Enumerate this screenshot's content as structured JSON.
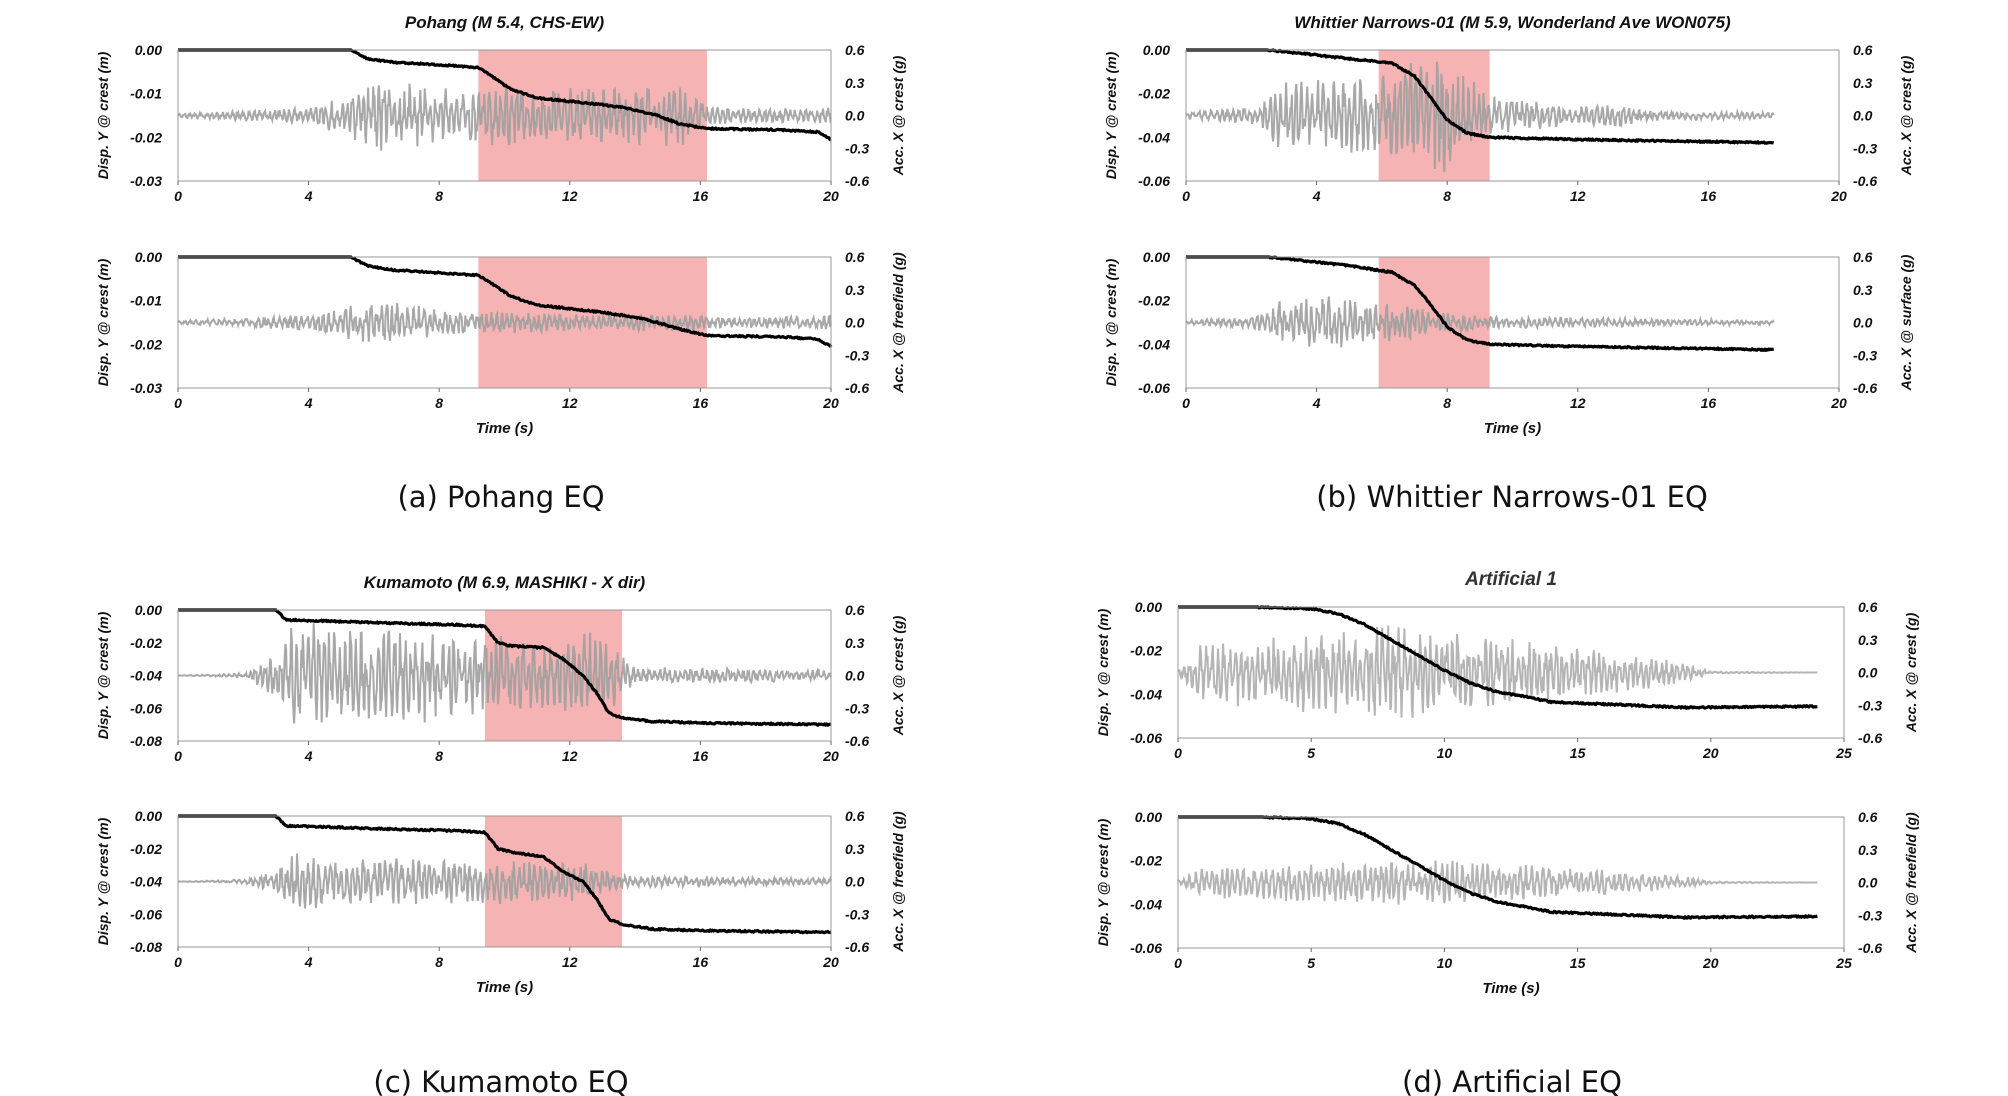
{
  "panels": [
    {
      "caption": "(a) Pohang EQ",
      "charts": [
        {
          "title": "Pohang (M 5.4, CHS-EW)",
          "ylabel": "Disp. Y @ crest (m)",
          "y2label": "Acc. X @ crest (g)",
          "xlabel": ""
        },
        {
          "title": "",
          "ylabel": "Disp. Y @ crest (m)",
          "y2label": "Acc. X @ freefield (g)",
          "xlabel": "Time (s)"
        }
      ]
    },
    {
      "caption": "(b) Whittier Narrows-01 EQ",
      "charts": [
        {
          "title": "Whittier Narrows-01 (M 5.9, Wonderland Ave WON075)",
          "ylabel": "Disp. Y @ crest (m)",
          "y2label": "Acc. X @ crest (g)",
          "xlabel": ""
        },
        {
          "title": "",
          "ylabel": "Disp. Y @ crest (m)",
          "y2label": "Acc. X @ surface (g)",
          "xlabel": "Time (s)"
        }
      ]
    },
    {
      "caption": "(c) Kumamoto EQ",
      "charts": [
        {
          "title": "Kumamoto (M 6.9, MASHIKI - X dir)",
          "ylabel": "Disp. Y @ crest (m)",
          "y2label": "Acc. X @ crest (g)",
          "xlabel": ""
        },
        {
          "title": "",
          "ylabel": "Disp. Y @ crest (m)",
          "y2label": "Acc. X @ freefield (g)",
          "xlabel": "Time (s)"
        }
      ]
    },
    {
      "caption": "(d) Artificial EQ",
      "charts": [
        {
          "title": "Artificial 1",
          "ylabel": "Disp. Y @ crest (m)",
          "y2label": "Acc. X @ crest (g)",
          "xlabel": ""
        },
        {
          "title": "",
          "ylabel": "Disp. Y @ crest (m)",
          "y2label": "Acc. X @ freefield (g)",
          "xlabel": "Time (s)"
        }
      ]
    }
  ],
  "chart_data": [
    {
      "id": "a-top",
      "type": "line",
      "title": "Pohang (M 5.4, CHS-EW)",
      "xlabel": "",
      "ylabel": "Disp. Y @ crest (m)",
      "y2label": "Acc. X @ crest (g)",
      "xlim": [
        0,
        20
      ],
      "xticks": [
        0,
        4,
        8,
        12,
        16,
        20
      ],
      "ylim": [
        -0.03,
        0
      ],
      "yticks": [
        0.0,
        -0.01,
        -0.02,
        -0.03
      ],
      "ydec": 2,
      "y2lim": [
        -0.6,
        0.6
      ],
      "y2ticks": [
        0.6,
        0.3,
        0.0,
        -0.3,
        -0.6
      ],
      "grid": false,
      "highlight": [
        9.2,
        16.2
      ],
      "highlight_color": "#f4a6a6",
      "disp_color": "#000000",
      "acc_color": "#9e9e9e",
      "disp": [
        [
          0,
          0
        ],
        [
          5.3,
          0
        ],
        [
          5.8,
          -0.002
        ],
        [
          6.6,
          -0.0028
        ],
        [
          7.6,
          -0.0032
        ],
        [
          9.2,
          -0.004
        ],
        [
          9.6,
          -0.006
        ],
        [
          10.2,
          -0.009
        ],
        [
          11.0,
          -0.011
        ],
        [
          12.6,
          -0.0122
        ],
        [
          13.5,
          -0.013
        ],
        [
          14.6,
          -0.0148
        ],
        [
          15.4,
          -0.017
        ],
        [
          16.2,
          -0.018
        ],
        [
          18.5,
          -0.0183
        ],
        [
          19.6,
          -0.0188
        ],
        [
          20,
          -0.0205
        ]
      ],
      "acc_env": [
        [
          0,
          0.02
        ],
        [
          2,
          0.05
        ],
        [
          4,
          0.07
        ],
        [
          5.5,
          0.24
        ],
        [
          6.2,
          0.34
        ],
        [
          8,
          0.28
        ],
        [
          9.5,
          0.3
        ],
        [
          11.5,
          0.28
        ],
        [
          13,
          0.26
        ],
        [
          15.5,
          0.3
        ],
        [
          16.3,
          0.08
        ],
        [
          19.5,
          0.06
        ],
        [
          20,
          0.1
        ]
      ],
      "acc_seed": 11
    },
    {
      "id": "a-bot",
      "type": "line",
      "title": "",
      "xlabel": "Time (s)",
      "ylabel": "Disp. Y @ crest (m)",
      "y2label": "Acc. X @ freefield (g)",
      "xlim": [
        0,
        20
      ],
      "xticks": [
        0,
        4,
        8,
        12,
        16,
        20
      ],
      "ylim": [
        -0.03,
        0
      ],
      "yticks": [
        0.0,
        -0.01,
        -0.02,
        -0.03
      ],
      "ydec": 2,
      "y2lim": [
        -0.6,
        0.6
      ],
      "y2ticks": [
        0.6,
        0.3,
        0.0,
        -0.3,
        -0.6
      ],
      "grid": false,
      "highlight": [
        9.2,
        16.2
      ],
      "highlight_color": "#f4a6a6",
      "disp_color": "#000000",
      "acc_color": "#9e9e9e",
      "disp": [
        [
          0,
          0
        ],
        [
          5.3,
          0
        ],
        [
          5.8,
          -0.002
        ],
        [
          6.6,
          -0.003
        ],
        [
          7.8,
          -0.0035
        ],
        [
          9.2,
          -0.0042
        ],
        [
          9.6,
          -0.006
        ],
        [
          10.2,
          -0.009
        ],
        [
          11.0,
          -0.011
        ],
        [
          12.8,
          -0.0125
        ],
        [
          14.2,
          -0.014
        ],
        [
          15.6,
          -0.017
        ],
        [
          16.2,
          -0.018
        ],
        [
          18.5,
          -0.0183
        ],
        [
          19.6,
          -0.0188
        ],
        [
          20,
          -0.0205
        ]
      ],
      "acc_env": [
        [
          0,
          0.02
        ],
        [
          2,
          0.04
        ],
        [
          4,
          0.08
        ],
        [
          5.5,
          0.18
        ],
        [
          6.2,
          0.22
        ],
        [
          8,
          0.12
        ],
        [
          10,
          0.1
        ],
        [
          13,
          0.08
        ],
        [
          16,
          0.08
        ],
        [
          16.3,
          0.05
        ],
        [
          19.5,
          0.06
        ],
        [
          20,
          0.08
        ]
      ],
      "acc_seed": 23
    },
    {
      "id": "b-top",
      "type": "line",
      "title": "Whittier Narrows-01 (M 5.9, Wonderland Ave WON075)",
      "xlabel": "",
      "ylabel": "Disp. Y @ crest (m)",
      "y2label": "Acc. X @ crest (g)",
      "xlim": [
        0,
        20
      ],
      "xticks": [
        0,
        4,
        8,
        12,
        16,
        20
      ],
      "ylim": [
        -0.06,
        0
      ],
      "yticks": [
        0.0,
        -0.02,
        -0.04,
        -0.06
      ],
      "ydec": 2,
      "y2lim": [
        -0.6,
        0.6
      ],
      "y2ticks": [
        0.6,
        0.3,
        0.0,
        -0.3,
        -0.6
      ],
      "grid": false,
      "highlight": [
        5.9,
        9.3
      ],
      "highlight_color": "#f4a6a6",
      "disp_color": "#000000",
      "acc_color": "#9e9e9e",
      "disp": [
        [
          0,
          0
        ],
        [
          2.5,
          0
        ],
        [
          3.5,
          -0.0015
        ],
        [
          5.0,
          -0.004
        ],
        [
          6.3,
          -0.006
        ],
        [
          7.0,
          -0.012
        ],
        [
          7.5,
          -0.022
        ],
        [
          8.0,
          -0.032
        ],
        [
          8.6,
          -0.038
        ],
        [
          9.3,
          -0.04
        ],
        [
          12,
          -0.041
        ],
        [
          16,
          -0.042
        ],
        [
          18,
          -0.0425
        ]
      ],
      "acc_env": [
        [
          0,
          0.03
        ],
        [
          2,
          0.08
        ],
        [
          2.8,
          0.3
        ],
        [
          4.5,
          0.35
        ],
        [
          6,
          0.4
        ],
        [
          7.4,
          0.6
        ],
        [
          8.5,
          0.45
        ],
        [
          9.3,
          0.2
        ],
        [
          12,
          0.08
        ],
        [
          13.3,
          0.12
        ],
        [
          14,
          0.05
        ],
        [
          18,
          0.03
        ]
      ],
      "acc_seed": 37,
      "acc_end": 18
    },
    {
      "id": "b-bot",
      "type": "line",
      "title": "",
      "xlabel": "Time (s)",
      "ylabel": "Disp. Y @ crest (m)",
      "y2label": "Acc. X @ surface (g)",
      "xlim": [
        0,
        20
      ],
      "xticks": [
        0,
        4,
        8,
        12,
        16,
        20
      ],
      "ylim": [
        -0.06,
        0
      ],
      "yticks": [
        0.0,
        -0.02,
        -0.04,
        -0.06
      ],
      "ydec": 2,
      "y2lim": [
        -0.6,
        0.6
      ],
      "y2ticks": [
        0.6,
        0.3,
        0.0,
        -0.3,
        -0.6
      ],
      "grid": false,
      "highlight": [
        5.9,
        9.3
      ],
      "highlight_color": "#f4a6a6",
      "disp_color": "#000000",
      "acc_color": "#9e9e9e",
      "disp": [
        [
          0,
          0
        ],
        [
          2.5,
          0
        ],
        [
          3.5,
          -0.0015
        ],
        [
          5.0,
          -0.004
        ],
        [
          6.3,
          -0.007
        ],
        [
          7.0,
          -0.013
        ],
        [
          7.5,
          -0.022
        ],
        [
          8.0,
          -0.032
        ],
        [
          8.6,
          -0.038
        ],
        [
          9.3,
          -0.04
        ],
        [
          12,
          -0.041
        ],
        [
          16,
          -0.042
        ],
        [
          18,
          -0.0425
        ]
      ],
      "acc_env": [
        [
          0,
          0.02
        ],
        [
          2,
          0.06
        ],
        [
          2.8,
          0.2
        ],
        [
          4.5,
          0.25
        ],
        [
          6,
          0.2
        ],
        [
          7.4,
          0.12
        ],
        [
          9.3,
          0.06
        ],
        [
          18,
          0.02
        ]
      ],
      "acc_seed": 41,
      "acc_end": 18
    },
    {
      "id": "c-top",
      "type": "line",
      "title": "Kumamoto (M 6.9, MASHIKI - X dir)",
      "xlabel": "",
      "ylabel": "Disp. Y @ crest (m)",
      "y2label": "Acc. X @ crest (g)",
      "xlim": [
        0,
        20
      ],
      "xticks": [
        0,
        4,
        8,
        12,
        16,
        20
      ],
      "ylim": [
        -0.08,
        0
      ],
      "yticks": [
        0.0,
        -0.02,
        -0.04,
        -0.06,
        -0.08
      ],
      "ydec": 2,
      "y2lim": [
        -0.6,
        0.6
      ],
      "y2ticks": [
        0.6,
        0.3,
        0.0,
        -0.3,
        -0.6
      ],
      "grid": false,
      "highlight": [
        9.4,
        13.6
      ],
      "highlight_color": "#f4a6a6",
      "disp_color": "#000000",
      "acc_color": "#9e9e9e",
      "disp": [
        [
          0,
          0
        ],
        [
          3.0,
          0
        ],
        [
          3.3,
          -0.006
        ],
        [
          5.0,
          -0.007
        ],
        [
          6.5,
          -0.008
        ],
        [
          8.5,
          -0.009
        ],
        [
          9.4,
          -0.01
        ],
        [
          9.8,
          -0.02
        ],
        [
          10.2,
          -0.022
        ],
        [
          11.2,
          -0.023
        ],
        [
          11.8,
          -0.03
        ],
        [
          12.4,
          -0.04
        ],
        [
          12.8,
          -0.05
        ],
        [
          13.2,
          -0.063
        ],
        [
          13.6,
          -0.066
        ],
        [
          14.5,
          -0.068
        ],
        [
          16,
          -0.069
        ],
        [
          20,
          -0.07
        ]
      ],
      "acc_env": [
        [
          0,
          0.0
        ],
        [
          2.0,
          0.02
        ],
        [
          3.0,
          0.2
        ],
        [
          3.5,
          0.5
        ],
        [
          5,
          0.45
        ],
        [
          7,
          0.45
        ],
        [
          9,
          0.4
        ],
        [
          10.5,
          0.35
        ],
        [
          12.5,
          0.42
        ],
        [
          13.6,
          0.25
        ],
        [
          14,
          0.08
        ],
        [
          20,
          0.06
        ]
      ],
      "acc_seed": 53
    },
    {
      "id": "c-bot",
      "type": "line",
      "title": "",
      "xlabel": "Time (s)",
      "ylabel": "Disp. Y @ crest (m)",
      "y2label": "Acc. X @ freefield (g)",
      "xlim": [
        0,
        20
      ],
      "xticks": [
        0,
        4,
        8,
        12,
        16,
        20
      ],
      "ylim": [
        -0.08,
        0
      ],
      "yticks": [
        0.0,
        -0.02,
        -0.04,
        -0.06,
        -0.08
      ],
      "ydec": 2,
      "y2lim": [
        -0.6,
        0.6
      ],
      "y2ticks": [
        0.6,
        0.3,
        0.0,
        -0.3,
        -0.6
      ],
      "grid": false,
      "highlight": [
        9.4,
        13.6
      ],
      "highlight_color": "#f4a6a6",
      "disp_color": "#000000",
      "acc_color": "#9e9e9e",
      "disp": [
        [
          0,
          0
        ],
        [
          3.0,
          0
        ],
        [
          3.3,
          -0.006
        ],
        [
          5.0,
          -0.007
        ],
        [
          6.5,
          -0.008
        ],
        [
          8.5,
          -0.009
        ],
        [
          9.4,
          -0.01
        ],
        [
          9.8,
          -0.02
        ],
        [
          10.2,
          -0.022
        ],
        [
          11.2,
          -0.025
        ],
        [
          11.8,
          -0.034
        ],
        [
          12.4,
          -0.04
        ],
        [
          12.8,
          -0.05
        ],
        [
          13.2,
          -0.063
        ],
        [
          13.6,
          -0.066
        ],
        [
          14.5,
          -0.069
        ],
        [
          16,
          -0.07
        ],
        [
          20,
          -0.071
        ]
      ],
      "acc_env": [
        [
          0,
          0.0
        ],
        [
          2.0,
          0.02
        ],
        [
          3.0,
          0.1
        ],
        [
          3.5,
          0.28
        ],
        [
          5,
          0.22
        ],
        [
          7,
          0.22
        ],
        [
          9,
          0.2
        ],
        [
          10.5,
          0.22
        ],
        [
          12.5,
          0.18
        ],
        [
          13.6,
          0.06
        ],
        [
          20,
          0.03
        ]
      ],
      "acc_seed": 67
    },
    {
      "id": "d-top",
      "type": "line",
      "title": "Artificial 1",
      "xlabel": "",
      "ylabel": "Disp. Y @ crest (m)",
      "y2label": "Acc. X @ crest (g)",
      "xlim": [
        0,
        25
      ],
      "xticks": [
        0,
        5,
        10,
        15,
        20,
        25
      ],
      "ylim": [
        -0.06,
        0
      ],
      "yticks": [
        0.0,
        -0.02,
        -0.04,
        -0.06
      ],
      "ydec": 2,
      "y2lim": [
        -0.6,
        0.6
      ],
      "y2ticks": [
        0.6,
        0.3,
        0.0,
        -0.3,
        -0.6
      ],
      "grid": false,
      "highlight": null,
      "disp_color": "#000000",
      "acc_color": "#a8a8a8",
      "disp": [
        [
          0,
          0
        ],
        [
          3,
          0
        ],
        [
          5,
          -0.0008
        ],
        [
          6,
          -0.003
        ],
        [
          7,
          -0.008
        ],
        [
          8,
          -0.015
        ],
        [
          9,
          -0.022
        ],
        [
          10,
          -0.029
        ],
        [
          11,
          -0.035
        ],
        [
          12,
          -0.039
        ],
        [
          13,
          -0.041
        ],
        [
          14,
          -0.0435
        ],
        [
          15,
          -0.044
        ],
        [
          17,
          -0.045
        ],
        [
          19,
          -0.046
        ],
        [
          24,
          -0.0455
        ]
      ],
      "acc_env": [
        [
          0,
          0.02
        ],
        [
          1,
          0.3
        ],
        [
          3,
          0.32
        ],
        [
          6,
          0.4
        ],
        [
          8,
          0.45
        ],
        [
          9,
          0.45
        ],
        [
          11,
          0.35
        ],
        [
          13,
          0.3
        ],
        [
          15,
          0.25
        ],
        [
          17,
          0.18
        ],
        [
          19,
          0.1
        ],
        [
          20,
          0.01
        ],
        [
          24,
          0.0
        ]
      ],
      "acc_seed": 79,
      "acc_end": 24
    },
    {
      "id": "d-bot",
      "type": "line",
      "title": "",
      "xlabel": "Time (s)",
      "ylabel": "Disp. Y @ crest (m)",
      "y2label": "Acc. X @ freefield (g)",
      "xlim": [
        0,
        25
      ],
      "xticks": [
        0,
        5,
        10,
        15,
        20,
        25
      ],
      "ylim": [
        -0.06,
        0
      ],
      "yticks": [
        0.0,
        -0.02,
        -0.04,
        -0.06
      ],
      "ydec": 2,
      "y2lim": [
        -0.6,
        0.6
      ],
      "y2ticks": [
        0.6,
        0.3,
        0.0,
        -0.3,
        -0.6
      ],
      "grid": false,
      "highlight": null,
      "disp_color": "#000000",
      "acc_color": "#a8a8a8",
      "disp": [
        [
          0,
          0
        ],
        [
          3,
          0
        ],
        [
          5,
          -0.0008
        ],
        [
          6,
          -0.003
        ],
        [
          7,
          -0.008
        ],
        [
          8,
          -0.015
        ],
        [
          9,
          -0.022
        ],
        [
          10,
          -0.029
        ],
        [
          11,
          -0.035
        ],
        [
          12,
          -0.039
        ],
        [
          13,
          -0.041
        ],
        [
          14,
          -0.0435
        ],
        [
          15,
          -0.044
        ],
        [
          17,
          -0.045
        ],
        [
          19,
          -0.046
        ],
        [
          24,
          -0.0455
        ]
      ],
      "acc_env": [
        [
          0,
          0.02
        ],
        [
          1,
          0.15
        ],
        [
          3,
          0.17
        ],
        [
          6,
          0.2
        ],
        [
          8,
          0.22
        ],
        [
          11,
          0.2
        ],
        [
          15,
          0.14
        ],
        [
          19,
          0.06
        ],
        [
          20,
          0.01
        ],
        [
          24,
          0.0
        ]
      ],
      "acc_seed": 83,
      "acc_end": 24
    }
  ]
}
